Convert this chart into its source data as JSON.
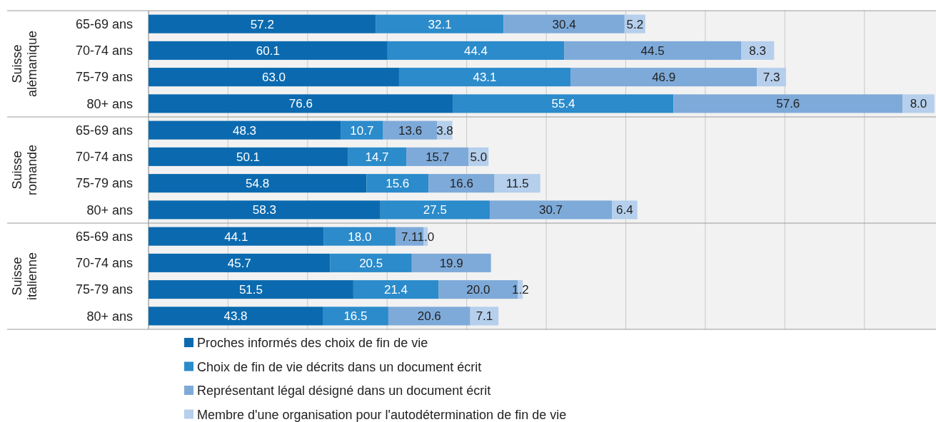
{
  "chart_data": {
    "type": "bar",
    "orientation": "horizontal",
    "stacked": true,
    "legend": "bottom",
    "grid": "x",
    "categories": [
      "65-69 ans",
      "70-74 ans",
      "75-79 ans",
      "80+ ans",
      "65-69 ans",
      "70-74 ans",
      "75-79 ans",
      "80+ ans",
      "65-69 ans",
      "70-74 ans",
      "75-79 ans",
      "80+ ans"
    ],
    "annotations": [
      "Suisse alémanique",
      "Suisse romande",
      "Suisse italienne"
    ],
    "xlim": [
      0,
      198
    ],
    "xticks": [
      {
        "value": 0,
        "label": null
      },
      {
        "value": 20,
        "label": null
      },
      {
        "value": 40,
        "label": null
      },
      {
        "value": 60,
        "label": null
      },
      {
        "value": 80,
        "label": null
      },
      {
        "value": 100,
        "label": null
      },
      {
        "value": 120,
        "label": null
      },
      {
        "value": 140,
        "label": null
      },
      {
        "value": 160,
        "label": null
      },
      {
        "value": 180,
        "label": null
      }
    ],
    "series": [
      {
        "name": "Proches informés des choix de fin de vie",
        "color": "#0b6aaf",
        "values": [
          57.2,
          60.1,
          63.0,
          76.6,
          48.3,
          50.1,
          54.8,
          58.3,
          44.1,
          45.7,
          51.5,
          43.8
        ],
        "value_labels": [
          "57.2",
          "60.1",
          "63.0",
          "76.6",
          "48.3",
          "50.1",
          "54.8",
          "58.3",
          "44.1",
          "45.7",
          "51.5",
          "43.8"
        ]
      },
      {
        "name": "Choix de fin de vie décrits dans un document écrit",
        "color": "#2b8bcb",
        "values": [
          32.1,
          44.4,
          43.1,
          55.4,
          10.7,
          14.7,
          15.6,
          27.5,
          18.0,
          20.5,
          21.4,
          16.5
        ],
        "value_labels": [
          "32.1",
          "44.4",
          "43.1",
          "55.4",
          "10.7",
          "14.7",
          "15.6",
          "27.5",
          "18.0",
          "20.5",
          "21.4",
          "16.5"
        ]
      },
      {
        "name": "Représentant légal désigné dans un document écrit",
        "color": "#7eaad9",
        "values": [
          30.4,
          44.5,
          46.9,
          57.6,
          13.6,
          15.7,
          16.6,
          30.7,
          7.1,
          19.9,
          20.0,
          20.6
        ],
        "value_labels": [
          "30.4",
          "44.5",
          "46.9",
          "57.6",
          "13.6",
          "15.7",
          "16.6",
          "30.7",
          "7.1",
          "19.9",
          "20.0",
          "20.6"
        ]
      },
      {
        "name": "Membre d'une organisation pour l'autodétermination de fin de vie",
        "color": "#b5cfec",
        "values": [
          5.2,
          8.3,
          7.3,
          8.0,
          3.8,
          5.0,
          11.5,
          6.4,
          1.0,
          null,
          1.2,
          7.1
        ],
        "value_labels": [
          "5.2",
          "8.3",
          "7.3",
          "8.0",
          "3.8",
          "5.0",
          "11.5",
          "6.4",
          "1.0",
          null,
          "1.2",
          "7.1"
        ]
      }
    ]
  }
}
